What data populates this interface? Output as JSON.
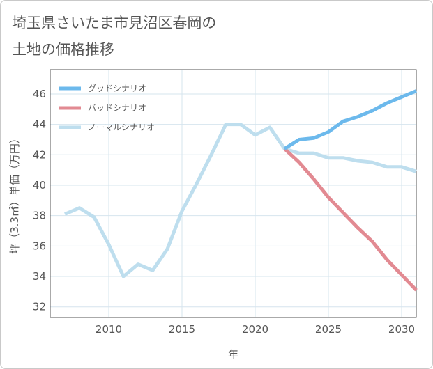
{
  "title_lines": [
    "埼玉県さいたま市見沼区春岡の",
    "土地の価格推移"
  ],
  "colors": {
    "good": "#6cb9ec",
    "bad": "#e28a92",
    "normal": "#bedeee",
    "grid": "#d6e4ee"
  },
  "chart_data": {
    "type": "line",
    "title": "埼玉県さいたま市見沼区春岡の土地の価格推移",
    "xlabel": "年",
    "ylabel": "坪（3.3㎡）単価（万円）",
    "xlim": [
      2006,
      2031
    ],
    "ylim": [
      31.3,
      47.6
    ],
    "xticks": [
      2010,
      2015,
      2020,
      2025,
      2030
    ],
    "yticks": [
      32,
      34,
      36,
      38,
      40,
      42,
      44,
      46
    ],
    "legend_position": "top-left",
    "series": [
      {
        "name": "グッドシナリオ",
        "color_key": "good",
        "x": [
          2022,
          2023,
          2024,
          2025,
          2026,
          2027,
          2028,
          2029,
          2030,
          2031
        ],
        "y": [
          42.4,
          43.0,
          43.1,
          43.5,
          44.2,
          44.5,
          44.9,
          45.4,
          45.8,
          46.2
        ]
      },
      {
        "name": "バッドシナリオ",
        "color_key": "bad",
        "x": [
          2022,
          2023,
          2024,
          2025,
          2026,
          2027,
          2028,
          2029,
          2030,
          2031
        ],
        "y": [
          42.4,
          41.5,
          40.4,
          39.2,
          38.2,
          37.2,
          36.3,
          35.1,
          34.1,
          33.1
        ]
      },
      {
        "name": "ノーマルシナリオ",
        "color_key": "normal",
        "x": [
          2007,
          2008,
          2009,
          2010,
          2011,
          2012,
          2013,
          2014,
          2015,
          2016,
          2017,
          2018,
          2019,
          2020,
          2021,
          2022,
          2023,
          2024,
          2025,
          2026,
          2027,
          2028,
          2029,
          2030,
          2031
        ],
        "y": [
          38.1,
          38.5,
          37.9,
          36.1,
          34.0,
          34.8,
          34.4,
          35.8,
          38.3,
          40.1,
          42.0,
          44.0,
          44.0,
          43.3,
          43.8,
          42.4,
          42.1,
          42.1,
          41.8,
          41.8,
          41.6,
          41.5,
          41.2,
          41.2,
          40.9
        ]
      }
    ]
  }
}
